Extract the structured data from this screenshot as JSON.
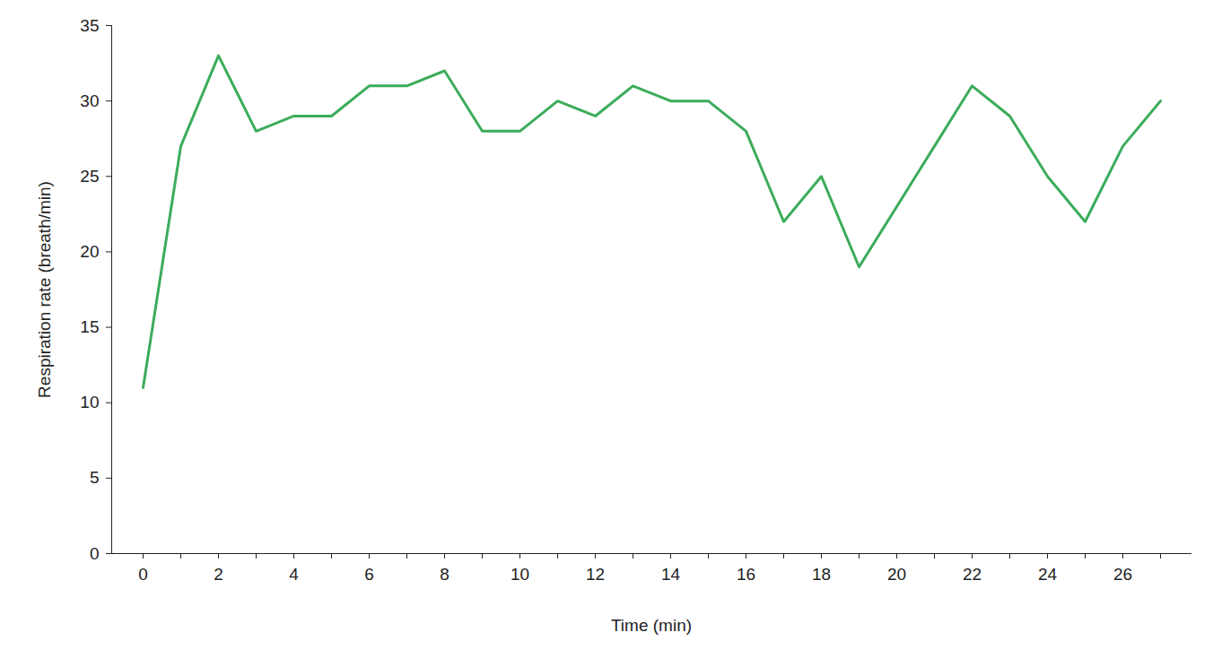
{
  "chart_data": {
    "type": "line",
    "x_label": "Time (min)",
    "y_label": "Respiration rate (breath/min)",
    "categories": [
      "0",
      null,
      "2",
      null,
      "4",
      null,
      "6",
      null,
      "8",
      null,
      "10",
      null,
      "12",
      null,
      "14",
      null,
      "16",
      null,
      "18",
      null,
      "20",
      null,
      "22",
      null,
      "24",
      null,
      "26",
      null
    ],
    "values": [
      11,
      27,
      33,
      28,
      29,
      29,
      31,
      31,
      32,
      28,
      28,
      30,
      29,
      31,
      30,
      30,
      28,
      22,
      25,
      19,
      23,
      27,
      31,
      29,
      25,
      22,
      27,
      30
    ],
    "color": "#3cac5a",
    "ylim": [
      0,
      35
    ],
    "yticks": [
      0,
      5,
      10,
      15,
      20,
      25,
      30,
      35
    ],
    "grid": false
  }
}
